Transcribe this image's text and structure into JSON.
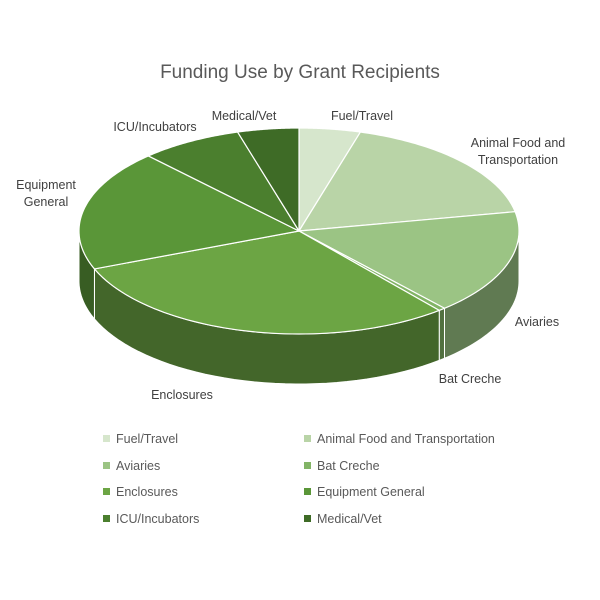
{
  "chart_data": {
    "type": "pie",
    "title": "Funding Use by Grant Recipients",
    "three_d": true,
    "legend_placement": "bottom",
    "slices": [
      {
        "label": "Fuel/Travel",
        "label_lines": [
          "Fuel/Travel"
        ],
        "value": 4.5,
        "color": "#d6e6cc"
      },
      {
        "label": "Animal Food and Transportation",
        "label_lines": [
          "Animal Food and",
          "Transportation"
        ],
        "value": 17.5,
        "color": "#b9d4a7"
      },
      {
        "label": "Aviaries",
        "label_lines": [
          "Aviaries"
        ],
        "value": 16.5,
        "color": "#9bc484"
      },
      {
        "label": "Bat Creche",
        "label_lines": [
          "Bat Creche"
        ],
        "value": 0.5,
        "color": "#82b466"
      },
      {
        "label": "Enclosures",
        "label_lines": [
          "Enclosures"
        ],
        "value": 30,
        "color": "#6ca544"
      },
      {
        "label": "Equipment General",
        "label_lines": [
          "Equipment",
          "General"
        ],
        "value": 19,
        "color": "#5a9638"
      },
      {
        "label": "ICU/Incubators",
        "label_lines": [
          "ICU/Incubators"
        ],
        "value": 7.5,
        "color": "#4b7f2e"
      },
      {
        "label": "Medical/Vet",
        "label_lines": [
          "Medical/Vet"
        ],
        "value": 4.5,
        "color": "#3e6b26"
      }
    ]
  }
}
